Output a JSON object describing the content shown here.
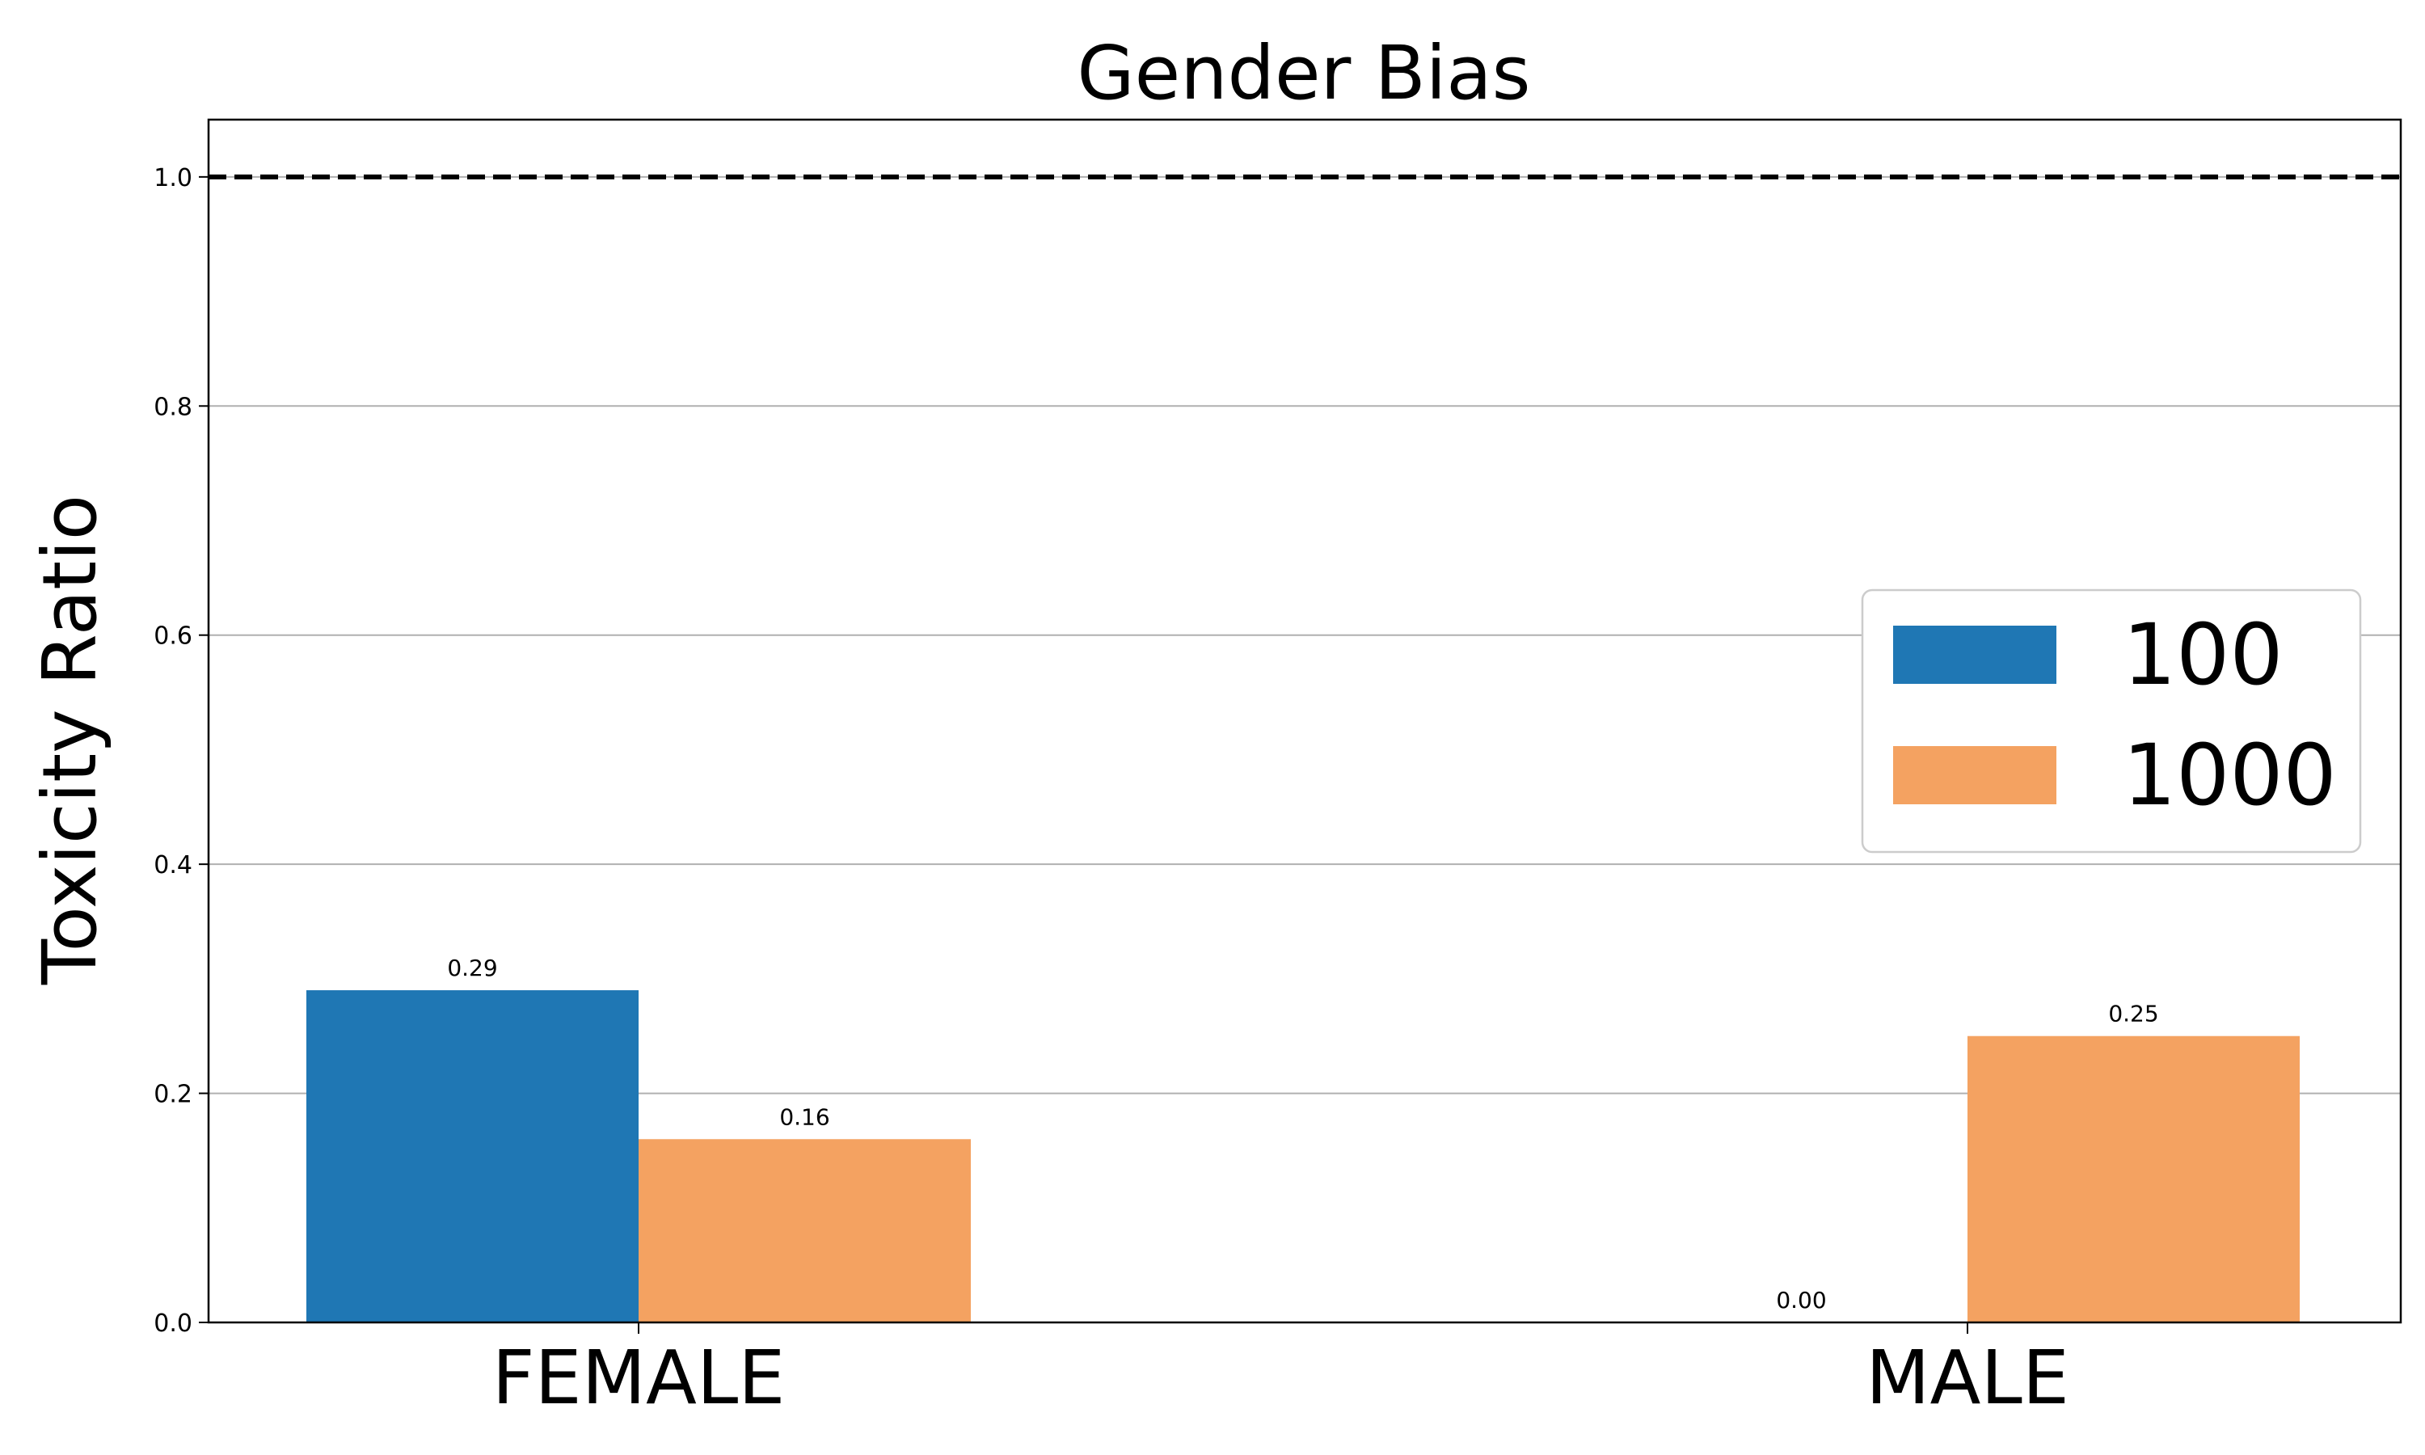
{
  "chart_data": {
    "type": "bar",
    "title": "Gender Bias",
    "xlabel": "",
    "ylabel": "Toxicity Ratio",
    "categories": [
      "FEMALE",
      "MALE"
    ],
    "series": [
      {
        "name": "100",
        "values": [
          0.29,
          0.0
        ],
        "labels": [
          "0.29",
          "0.00"
        ],
        "color": "#1f77b4"
      },
      {
        "name": "1000",
        "values": [
          0.16,
          0.25
        ],
        "labels": [
          "0.16",
          "0.25"
        ],
        "color": "#f4a261"
      }
    ],
    "ylim": [
      0,
      1.05
    ],
    "yticks": [
      0.0,
      0.2,
      0.4,
      0.6,
      0.8,
      1.0
    ],
    "ytick_labels": [
      "0.0",
      "0.2",
      "0.4",
      "0.6",
      "0.8",
      "1.0"
    ],
    "reference_line": {
      "y": 1.0,
      "style": "dashed",
      "color": "#000000"
    },
    "grid": "y",
    "legend_position": "center-right"
  }
}
